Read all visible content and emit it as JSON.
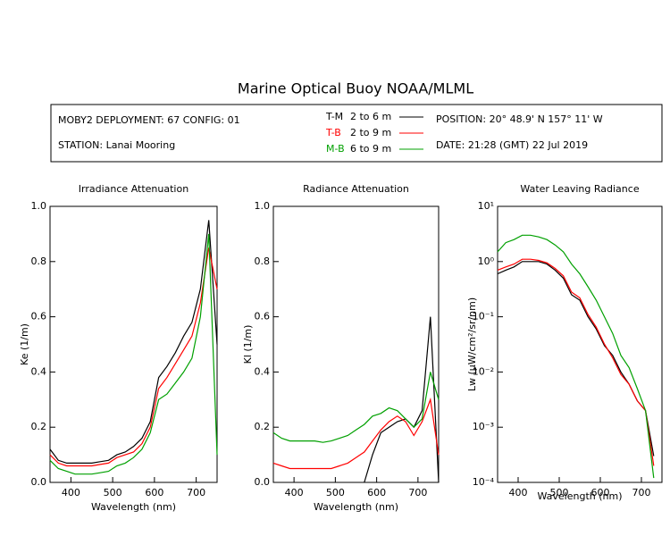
{
  "title": "Marine Optical Buoy NOAA/MLML",
  "header": {
    "deployment": "MOBY2 DEPLOYMENT: 67 CONFIG: 01",
    "station": "STATION: Lanai Mooring",
    "position": "POSITION: 20° 48.9' N   157° 11' W",
    "date": "DATE: 21:28 (GMT) 22 Jul 2019",
    "depths": [
      "2 to 6  m",
      "2 to 9  m",
      "6 to 9  m"
    ]
  },
  "chart_data": [
    {
      "type": "line",
      "title": "Irradiance Attenuation",
      "x_label": "Wavelength (nm)",
      "y_label": "Ke  (1/m)",
      "x": [
        350,
        370,
        390,
        410,
        430,
        450,
        470,
        490,
        510,
        530,
        550,
        570,
        590,
        610,
        630,
        650,
        670,
        690,
        710,
        730,
        750
      ],
      "xlim": [
        350,
        750
      ],
      "xticks": [
        400,
        500,
        600,
        700
      ],
      "ylim": [
        0,
        1
      ],
      "yticks": [
        {
          "value": 0,
          "label": "0.0"
        },
        0.2,
        0.4,
        0.6,
        0.8,
        {
          "value": 1,
          "label": "1.0"
        }
      ],
      "log_y": false,
      "series": [
        {
          "name": "T-M",
          "color": "#000000",
          "values": [
            0.12,
            0.08,
            0.07,
            0.07,
            0.07,
            0.07,
            0.075,
            0.08,
            0.1,
            0.11,
            0.13,
            0.16,
            0.22,
            0.38,
            0.42,
            0.47,
            0.53,
            0.58,
            0.7,
            0.95,
            0.5
          ]
        },
        {
          "name": "T-B",
          "color": "#ff0000",
          "values": [
            0.1,
            0.07,
            0.06,
            0.06,
            0.06,
            0.06,
            0.065,
            0.07,
            0.09,
            0.1,
            0.11,
            0.14,
            0.2,
            0.34,
            0.38,
            0.43,
            0.48,
            0.53,
            0.65,
            0.85,
            0.7
          ]
        },
        {
          "name": "M-B",
          "color": "#00a000",
          "values": [
            0.08,
            0.05,
            0.04,
            0.03,
            0.03,
            0.03,
            0.035,
            0.04,
            0.06,
            0.07,
            0.09,
            0.12,
            0.18,
            0.3,
            0.32,
            0.36,
            0.4,
            0.45,
            0.6,
            0.9,
            0.1
          ]
        }
      ]
    },
    {
      "type": "line",
      "title": "Radiance Attenuation",
      "x_label": "Wavelength (nm)",
      "y_label": "Kl  (1/m)",
      "x": [
        350,
        370,
        390,
        410,
        430,
        450,
        470,
        490,
        510,
        530,
        550,
        570,
        590,
        610,
        630,
        650,
        670,
        690,
        710,
        730,
        750
      ],
      "xlim": [
        350,
        750
      ],
      "xticks": [
        400,
        500,
        600,
        700
      ],
      "ylim": [
        0,
        1
      ],
      "yticks": [
        {
          "value": 0,
          "label": "0.0"
        },
        0.2,
        0.4,
        0.6,
        0.8,
        {
          "value": 1,
          "label": "1.0"
        }
      ],
      "log_y": false,
      "series": [
        {
          "name": "T-M",
          "color": "#000000",
          "values": [
            null,
            null,
            null,
            null,
            null,
            null,
            null,
            null,
            null,
            null,
            null,
            0.0,
            0.1,
            0.18,
            0.2,
            0.22,
            0.23,
            0.2,
            0.26,
            0.6,
            0.0
          ]
        },
        {
          "name": "T-B",
          "color": "#ff0000",
          "values": [
            0.07,
            0.06,
            0.05,
            0.05,
            0.05,
            0.05,
            0.05,
            0.05,
            0.06,
            0.07,
            0.09,
            0.11,
            0.15,
            0.19,
            0.22,
            0.24,
            0.22,
            0.17,
            0.22,
            0.3,
            0.1
          ]
        },
        {
          "name": "M-B",
          "color": "#00a000",
          "values": [
            0.18,
            0.16,
            0.15,
            0.15,
            0.15,
            0.15,
            0.145,
            0.15,
            0.16,
            0.17,
            0.19,
            0.21,
            0.24,
            0.25,
            0.27,
            0.26,
            0.23,
            0.2,
            0.23,
            0.4,
            0.3
          ]
        }
      ]
    },
    {
      "type": "line",
      "title": "Water Leaving Radiance",
      "x_label": "Wavelength (nm)",
      "y_label": "Lw  (μW/cm²/sr/nm)",
      "x": [
        350,
        370,
        390,
        410,
        430,
        450,
        470,
        490,
        510,
        530,
        550,
        570,
        590,
        610,
        630,
        650,
        670,
        690,
        710,
        730,
        750
      ],
      "xlim": [
        350,
        750
      ],
      "xticks": [
        400,
        500,
        600,
        700
      ],
      "ylim": [
        0.0001,
        10
      ],
      "yticks": [
        {
          "value": 0.0001,
          "label": "10⁻⁴"
        },
        {
          "value": 0.001,
          "label": "10⁻³"
        },
        {
          "value": 0.01,
          "label": "10⁻²"
        },
        {
          "value": 0.1,
          "label": "10⁻¹"
        },
        {
          "value": 1,
          "label": "10⁰"
        },
        {
          "value": 10,
          "label": "10¹"
        }
      ],
      "log_y": true,
      "series": [
        {
          "name": "T-M",
          "color": "#000000",
          "values": [
            0.6,
            0.7,
            0.8,
            1.0,
            1.0,
            1.0,
            0.9,
            0.7,
            0.5,
            0.25,
            0.2,
            0.1,
            0.06,
            0.03,
            0.02,
            0.01,
            0.006,
            0.003,
            0.002,
            0.0003,
            null
          ]
        },
        {
          "name": "T-B",
          "color": "#ff0000",
          "values": [
            0.7,
            0.8,
            0.9,
            1.1,
            1.1,
            1.05,
            0.95,
            0.75,
            0.55,
            0.28,
            0.22,
            0.11,
            0.065,
            0.032,
            0.018,
            0.009,
            0.006,
            0.003,
            0.002,
            0.0002,
            null
          ]
        },
        {
          "name": "M-B",
          "color": "#00a000",
          "values": [
            1.5,
            2.2,
            2.5,
            3,
            3,
            2.8,
            2.5,
            2,
            1.5,
            0.9,
            0.6,
            0.35,
            0.2,
            0.1,
            0.05,
            0.02,
            0.012,
            0.005,
            0.002,
            0.00012,
            null
          ]
        }
      ]
    }
  ]
}
